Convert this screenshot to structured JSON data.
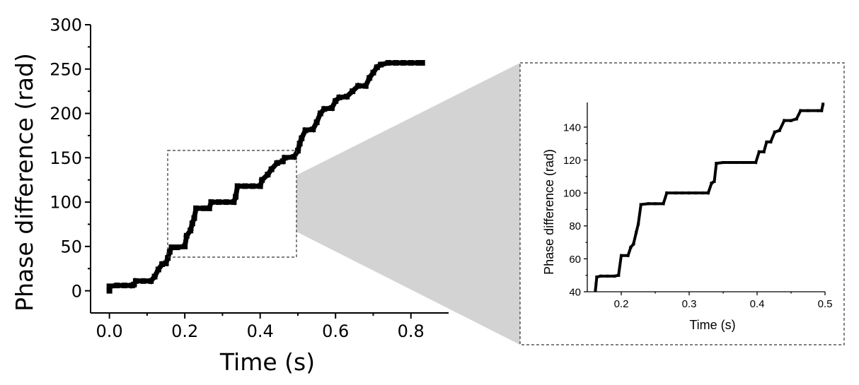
{
  "chart_data": [
    {
      "type": "scatter",
      "xlabel": "Time (s)",
      "ylabel": "Phase difference (rad)",
      "xlim": [
        -0.05,
        0.9
      ],
      "ylim": [
        -25,
        300
      ],
      "xticks": [
        0.0,
        0.2,
        0.4,
        0.6,
        0.8
      ],
      "xtick_labels": [
        "0.0",
        "0.2",
        "0.4",
        "0.6",
        "0.8"
      ],
      "yticks": [
        0,
        50,
        100,
        150,
        200,
        250,
        300
      ],
      "ytick_labels": [
        "0",
        "50",
        "100",
        "150",
        "200",
        "250",
        "300"
      ],
      "grid": false,
      "marker_color": "#000000",
      "series": [
        {
          "points": [
            [
              0.0,
              0
            ],
            [
              0.0,
              5
            ],
            [
              0.02,
              6
            ],
            [
              0.04,
              6
            ],
            [
              0.06,
              6
            ],
            [
              0.065,
              7
            ],
            [
              0.07,
              11
            ],
            [
              0.09,
              11
            ],
            [
              0.11,
              11
            ],
            [
              0.12,
              16
            ],
            [
              0.13,
              24
            ],
            [
              0.14,
              30
            ],
            [
              0.15,
              31
            ],
            [
              0.155,
              37
            ],
            [
              0.16,
              44
            ],
            [
              0.165,
              49
            ],
            [
              0.18,
              49
            ],
            [
              0.2,
              50
            ],
            [
              0.205,
              62
            ],
            [
              0.215,
              68
            ],
            [
              0.22,
              76
            ],
            [
              0.225,
              82
            ],
            [
              0.23,
              93
            ],
            [
              0.25,
              93
            ],
            [
              0.265,
              93
            ],
            [
              0.27,
              100
            ],
            [
              0.29,
              100
            ],
            [
              0.31,
              100
            ],
            [
              0.33,
              100
            ],
            [
              0.335,
              106
            ],
            [
              0.34,
              118
            ],
            [
              0.36,
              118
            ],
            [
              0.38,
              118
            ],
            [
              0.4,
              118
            ],
            [
              0.405,
              125
            ],
            [
              0.42,
              131
            ],
            [
              0.43,
              137
            ],
            [
              0.445,
              144
            ],
            [
              0.46,
              146
            ],
            [
              0.465,
              150
            ],
            [
              0.49,
              151
            ],
            [
              0.5,
              158
            ],
            [
              0.505,
              166
            ],
            [
              0.51,
              172
            ],
            [
              0.52,
              181
            ],
            [
              0.54,
              182
            ],
            [
              0.55,
              190
            ],
            [
              0.56,
              200
            ],
            [
              0.57,
              205
            ],
            [
              0.59,
              206
            ],
            [
              0.6,
              214
            ],
            [
              0.61,
              218
            ],
            [
              0.63,
              219
            ],
            [
              0.645,
              225
            ],
            [
              0.66,
              231
            ],
            [
              0.68,
              231
            ],
            [
              0.69,
              240
            ],
            [
              0.7,
              246
            ],
            [
              0.71,
              252
            ],
            [
              0.72,
              255
            ],
            [
              0.74,
              257
            ],
            [
              0.76,
              257
            ],
            [
              0.78,
              257
            ],
            [
              0.8,
              257
            ],
            [
              0.82,
              257
            ],
            [
              0.83,
              257
            ]
          ]
        }
      ]
    },
    {
      "type": "scatter",
      "xlabel": "Time (s)",
      "ylabel": "Phase difference (rad)",
      "xlim": [
        0.15,
        0.5
      ],
      "ylim": [
        40,
        155
      ],
      "xticks": [
        0.2,
        0.3,
        0.4,
        0.5
      ],
      "xtick_labels": [
        "0.2",
        "0.3",
        "0.4",
        "0.5"
      ],
      "yticks": [
        40,
        60,
        80,
        100,
        120,
        140
      ],
      "ytick_labels": [
        "40",
        "60",
        "80",
        "100",
        "120",
        "140"
      ],
      "grid": false,
      "marker_color": "#000000",
      "series": [
        {
          "points": [
            [
              0.162,
              41
            ],
            [
              0.163,
              45
            ],
            [
              0.164,
              49
            ],
            [
              0.17,
              49.5
            ],
            [
              0.18,
              49.5
            ],
            [
              0.19,
              49.5
            ],
            [
              0.196,
              50
            ],
            [
              0.2,
              62
            ],
            [
              0.21,
              62
            ],
            [
              0.214,
              67
            ],
            [
              0.218,
              69
            ],
            [
              0.222,
              76
            ],
            [
              0.225,
              81
            ],
            [
              0.229,
              93
            ],
            [
              0.24,
              93.5
            ],
            [
              0.25,
              93.5
            ],
            [
              0.262,
              93.5
            ],
            [
              0.267,
              100
            ],
            [
              0.28,
              100
            ],
            [
              0.29,
              100
            ],
            [
              0.3,
              100
            ],
            [
              0.31,
              100
            ],
            [
              0.32,
              100
            ],
            [
              0.328,
              100
            ],
            [
              0.333,
              106
            ],
            [
              0.337,
              107
            ],
            [
              0.34,
              118
            ],
            [
              0.35,
              118.5
            ],
            [
              0.36,
              118.5
            ],
            [
              0.37,
              118.5
            ],
            [
              0.38,
              118.5
            ],
            [
              0.39,
              118.5
            ],
            [
              0.398,
              118.5
            ],
            [
              0.403,
              125
            ],
            [
              0.41,
              125
            ],
            [
              0.414,
              131
            ],
            [
              0.42,
              131
            ],
            [
              0.426,
              137
            ],
            [
              0.433,
              138
            ],
            [
              0.44,
              144
            ],
            [
              0.45,
              144
            ],
            [
              0.458,
              145
            ],
            [
              0.464,
              150
            ],
            [
              0.475,
              150
            ],
            [
              0.49,
              150
            ],
            [
              0.495,
              150
            ],
            [
              0.497,
              154
            ]
          ]
        }
      ]
    }
  ],
  "colors": {
    "data_marker": "#000000",
    "zoom_fill": "#d3d3d3",
    "frame_border": "#333333"
  }
}
